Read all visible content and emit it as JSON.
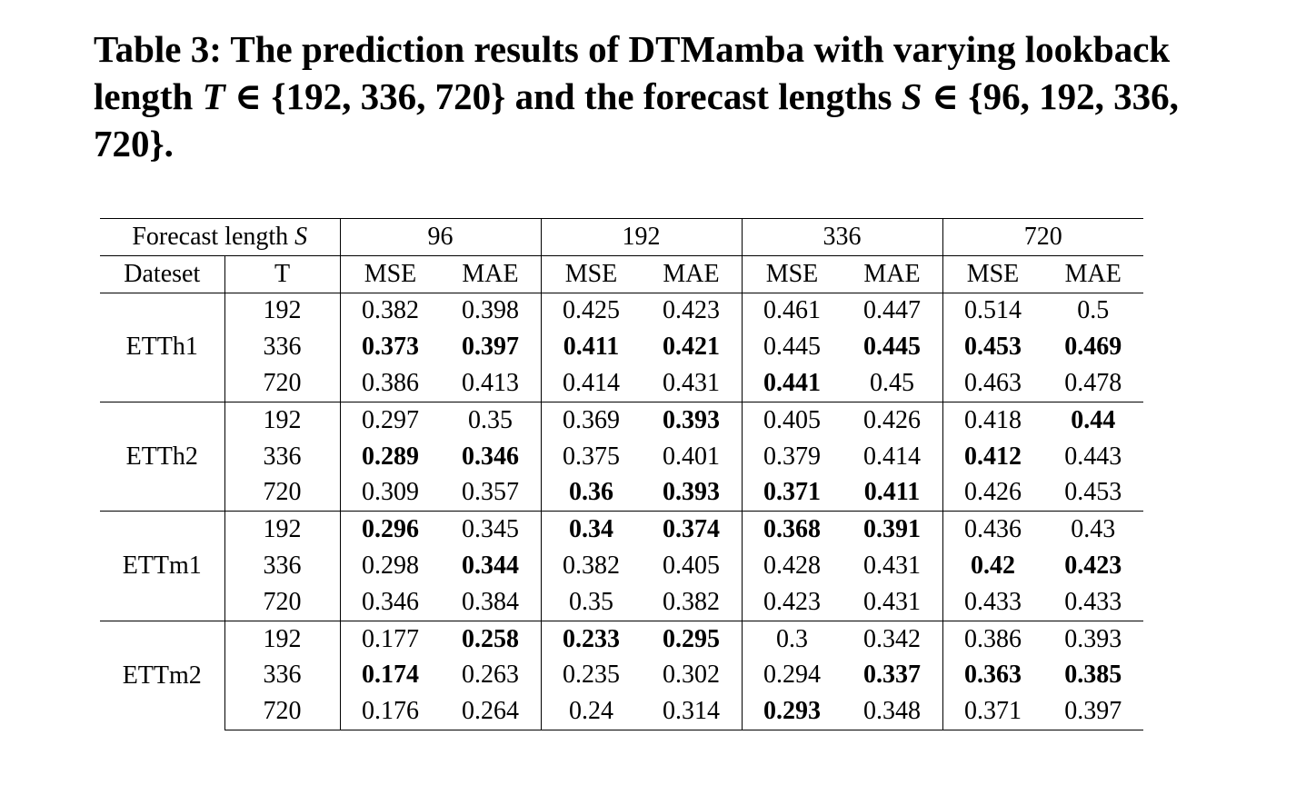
{
  "caption": {
    "part1": "Table 3: The prediction results of DTMamba with varying lookback length ",
    "var_T": "T",
    "part2": " ∈ {192, 336, 720} and the forecast lengths ",
    "var_S": "S",
    "part3": " ∈ {96, 192, 336, 720}."
  },
  "table": {
    "header_forecast_label": "Forecast length ",
    "header_forecast_var": "S",
    "horizons": [
      "96",
      "192",
      "336",
      "720"
    ],
    "dataset_label": "Dateset",
    "t_label": "T",
    "metrics": [
      "MSE",
      "MAE",
      "MSE",
      "MAE",
      "MSE",
      "MAE",
      "MSE",
      "MAE"
    ],
    "groups": [
      {
        "dataset": "ETTh1",
        "rows": [
          {
            "t": "192",
            "values": [
              "0.382",
              "0.398",
              "0.425",
              "0.423",
              "0.461",
              "0.447",
              "0.514",
              "0.5"
            ],
            "bold": [
              false,
              false,
              false,
              false,
              false,
              false,
              false,
              false
            ]
          },
          {
            "t": "336",
            "values": [
              "0.373",
              "0.397",
              "0.411",
              "0.421",
              "0.445",
              "0.445",
              "0.453",
              "0.469"
            ],
            "bold": [
              true,
              true,
              true,
              true,
              false,
              true,
              true,
              true
            ]
          },
          {
            "t": "720",
            "values": [
              "0.386",
              "0.413",
              "0.414",
              "0.431",
              "0.441",
              "0.45",
              "0.463",
              "0.478"
            ],
            "bold": [
              false,
              false,
              false,
              false,
              true,
              false,
              false,
              false
            ]
          }
        ]
      },
      {
        "dataset": "ETTh2",
        "rows": [
          {
            "t": "192",
            "values": [
              "0.297",
              "0.35",
              "0.369",
              "0.393",
              "0.405",
              "0.426",
              "0.418",
              "0.44"
            ],
            "bold": [
              false,
              false,
              false,
              true,
              false,
              false,
              false,
              true
            ]
          },
          {
            "t": "336",
            "values": [
              "0.289",
              "0.346",
              "0.375",
              "0.401",
              "0.379",
              "0.414",
              "0.412",
              "0.443"
            ],
            "bold": [
              true,
              true,
              false,
              false,
              false,
              false,
              true,
              false
            ]
          },
          {
            "t": "720",
            "values": [
              "0.309",
              "0.357",
              "0.36",
              "0.393",
              "0.371",
              "0.411",
              "0.426",
              "0.453"
            ],
            "bold": [
              false,
              false,
              true,
              true,
              true,
              true,
              false,
              false
            ]
          }
        ]
      },
      {
        "dataset": "ETTm1",
        "rows": [
          {
            "t": "192",
            "values": [
              "0.296",
              "0.345",
              "0.34",
              "0.374",
              "0.368",
              "0.391",
              "0.436",
              "0.43"
            ],
            "bold": [
              true,
              false,
              true,
              true,
              true,
              true,
              false,
              false
            ]
          },
          {
            "t": "336",
            "values": [
              "0.298",
              "0.344",
              "0.382",
              "0.405",
              "0.428",
              "0.431",
              "0.42",
              "0.423"
            ],
            "bold": [
              false,
              true,
              false,
              false,
              false,
              false,
              true,
              true
            ]
          },
          {
            "t": "720",
            "values": [
              "0.346",
              "0.384",
              "0.35",
              "0.382",
              "0.423",
              "0.431",
              "0.433",
              "0.433"
            ],
            "bold": [
              false,
              false,
              false,
              false,
              false,
              false,
              false,
              false
            ]
          }
        ]
      },
      {
        "dataset": "ETTm2",
        "rows": [
          {
            "t": "192",
            "values": [
              "0.177",
              "0.258",
              "0.233",
              "0.295",
              "0.3",
              "0.342",
              "0.386",
              "0.393"
            ],
            "bold": [
              false,
              true,
              true,
              true,
              false,
              false,
              false,
              false
            ]
          },
          {
            "t": "336",
            "values": [
              "0.174",
              "0.263",
              "0.235",
              "0.302",
              "0.294",
              "0.337",
              "0.363",
              "0.385"
            ],
            "bold": [
              true,
              false,
              false,
              false,
              false,
              true,
              true,
              true
            ]
          },
          {
            "t": "720",
            "values": [
              "0.176",
              "0.264",
              "0.24",
              "0.314",
              "0.293",
              "0.348",
              "0.371",
              "0.397"
            ],
            "bold": [
              false,
              false,
              false,
              false,
              true,
              false,
              false,
              false
            ]
          }
        ]
      }
    ]
  }
}
